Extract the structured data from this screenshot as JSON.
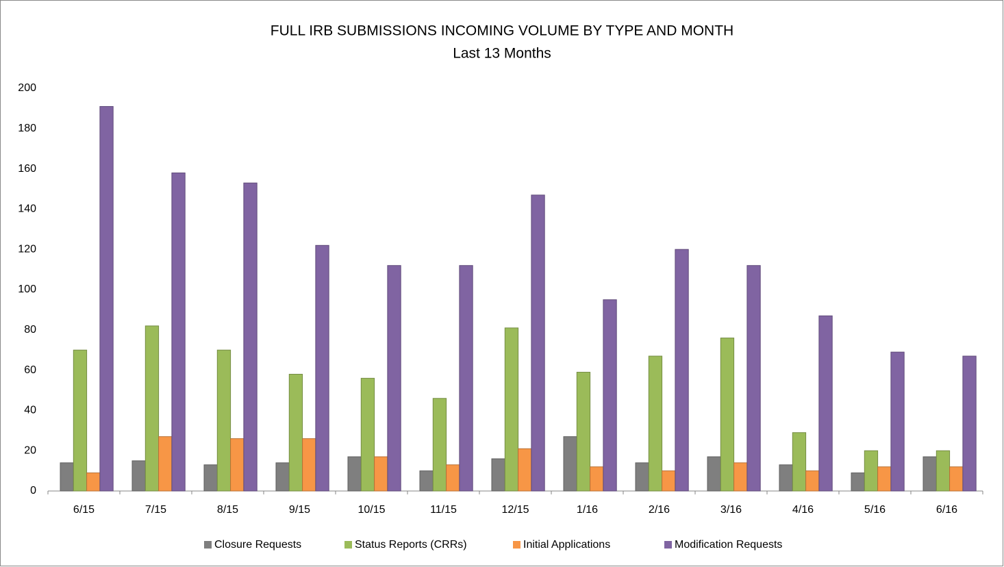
{
  "chart_data": {
    "type": "bar",
    "title": "FULL IRB SUBMISSIONS INCOMING VOLUME BY TYPE AND MONTH",
    "subtitle": "Last 13 Months",
    "categories": [
      "6/15",
      "7/15",
      "8/15",
      "9/15",
      "10/15",
      "11/15",
      "12/15",
      "1/16",
      "2/16",
      "3/16",
      "4/16",
      "5/16",
      "6/16"
    ],
    "series": [
      {
        "name": "Closure Requests",
        "color": "#7f7f7f",
        "values": [
          14,
          15,
          13,
          14,
          17,
          10,
          16,
          27,
          14,
          17,
          13,
          9,
          17
        ]
      },
      {
        "name": "Status Reports (CRRs)",
        "color": "#9bbb59",
        "values": [
          70,
          82,
          70,
          58,
          56,
          46,
          81,
          59,
          67,
          76,
          29,
          20,
          20
        ]
      },
      {
        "name": "Initial Applications",
        "color": "#f79646",
        "values": [
          9,
          27,
          26,
          26,
          17,
          13,
          21,
          12,
          10,
          14,
          10,
          12,
          12
        ]
      },
      {
        "name": "Modification Requests",
        "color": "#8064a2",
        "values": [
          191,
          158,
          153,
          122,
          112,
          112,
          147,
          95,
          120,
          112,
          87,
          69,
          67
        ]
      }
    ],
    "ylim": [
      0,
      200
    ],
    "yticks": [
      0,
      20,
      40,
      60,
      80,
      100,
      120,
      140,
      160,
      180,
      200
    ],
    "grid": false,
    "legend": "bottom"
  }
}
